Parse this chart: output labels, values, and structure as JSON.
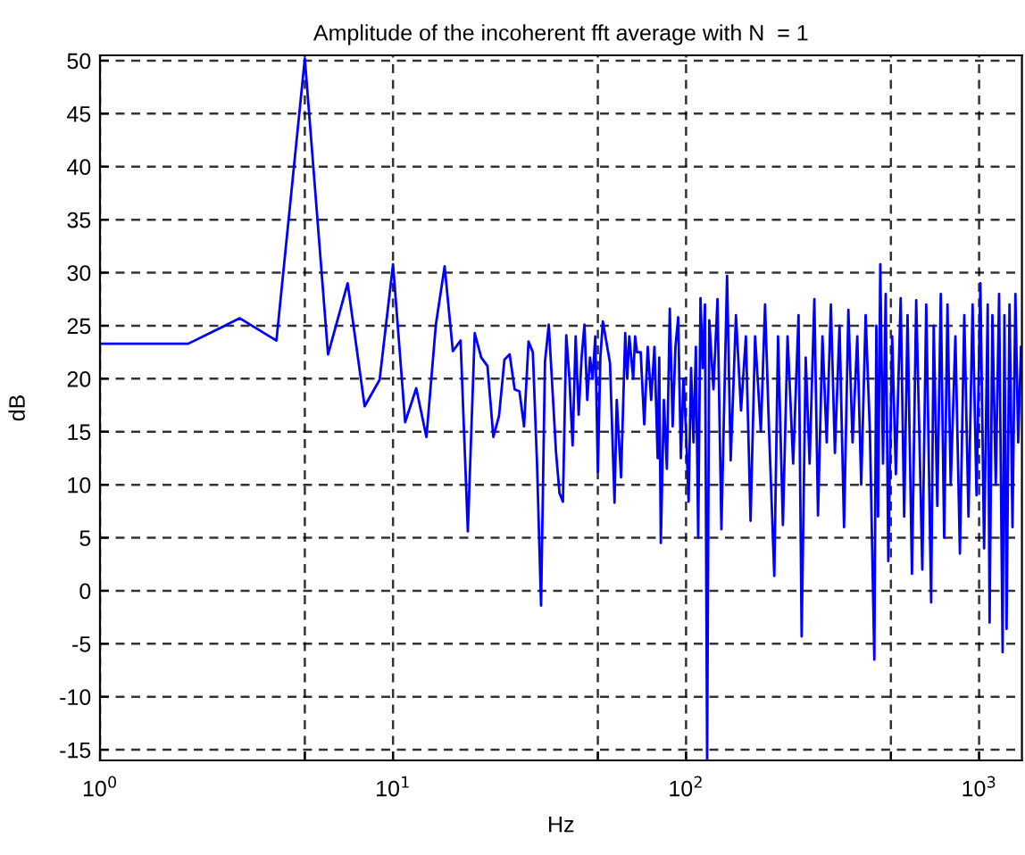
{
  "chart_data": {
    "type": "line",
    "title": "Amplitude of the incoherent fft average with N  = 1",
    "xlabel": "Hz",
    "ylabel": "dB",
    "log": "x",
    "grid": true,
    "line_style": "solid",
    "marker": "none",
    "xlim": [
      1,
      1400
    ],
    "ylim": [
      -16,
      50.5
    ],
    "xticks": [
      {
        "value": 1,
        "label": "10$^{0}$"
      },
      {
        "value": 5,
        "label": null
      },
      {
        "value": 10,
        "label": "10$^{1}$"
      },
      {
        "value": 50,
        "label": null
      },
      {
        "value": 100,
        "label": "10$^{2}$"
      },
      {
        "value": 500,
        "label": null
      },
      {
        "value": 1000,
        "label": "10$^{3}$"
      }
    ],
    "yticks": [
      -15,
      -10,
      -5,
      0,
      5,
      10,
      15,
      20,
      25,
      30,
      35,
      40,
      45,
      50
    ],
    "series": [
      {
        "color": "#0000ff",
        "x": [
          1,
          2,
          3,
          4,
          5,
          6,
          7,
          8,
          9,
          10,
          11,
          12,
          13,
          14,
          15,
          16,
          17,
          18,
          19,
          20,
          21,
          22,
          23,
          24,
          25,
          26,
          27,
          28,
          29,
          30,
          31,
          32,
          33,
          34,
          35,
          36,
          37,
          38,
          39,
          40,
          41,
          42,
          43,
          44,
          45,
          46,
          47,
          48,
          49,
          50,
          51,
          52,
          55,
          57,
          58,
          60,
          62,
          63,
          64,
          66,
          67,
          68,
          70,
          72,
          74,
          76,
          78,
          80,
          81,
          82,
          84,
          86,
          88,
          90,
          92,
          94,
          96,
          98,
          100,
          102,
          104,
          106,
          108,
          110,
          112,
          114,
          116,
          118,
          120,
          124,
          128,
          132,
          138,
          142,
          148,
          154,
          160,
          166,
          172,
          180,
          186,
          192,
          200,
          206,
          214,
          222,
          232,
          242,
          248,
          256,
          264,
          274,
          282,
          292,
          302,
          312,
          322,
          334,
          346,
          358,
          370,
          384,
          396,
          410,
          424,
          439,
          446,
          452,
          460,
          470,
          480,
          490,
          505,
          520,
          540,
          555,
          570,
          590,
          610,
          625,
          640,
          660,
          686,
          700,
          720,
          740,
          760,
          780,
          800,
          830,
          860,
          890,
          920,
          950,
          980,
          1010,
          1040,
          1070,
          1086,
          1110,
          1140,
          1170,
          1203,
          1220,
          1241,
          1270,
          1300,
          1330,
          1360,
          1390
        ],
        "values": [
          23.3,
          23.3,
          25.7,
          23.6,
          50.2,
          22.3,
          29,
          17.4,
          19.9,
          30.8,
          15.9,
          19.1,
          14.5,
          25.1,
          30.6,
          22.6,
          23.6,
          5.6,
          24.3,
          22,
          21.2,
          14.5,
          16.5,
          21.8,
          22.3,
          19,
          18.8,
          15.5,
          23.5,
          22.5,
          12,
          -1.4,
          21.6,
          25.1,
          19,
          13,
          9.2,
          8.4,
          24.1,
          20,
          13.7,
          24,
          16.6,
          22,
          25.1,
          18,
          22,
          20,
          24,
          11.2,
          22,
          25.4,
          21.5,
          8.3,
          18,
          10.7,
          24.3,
          20,
          24,
          20,
          24,
          22.5,
          22.5,
          15.7,
          23,
          18,
          23,
          12.5,
          22,
          4.5,
          18,
          11.5,
          26.6,
          15.5,
          23,
          25.8,
          12.5,
          20,
          15,
          8.4,
          21,
          14,
          23,
          5,
          27.6,
          21,
          27,
          -16,
          25.5,
          19,
          27.5,
          5.8,
          29.7,
          12.3,
          26,
          17,
          24,
          6.6,
          24,
          15,
          27,
          15,
          1.4,
          24,
          6.2,
          24,
          12,
          26,
          -4.3,
          22,
          12,
          27.5,
          7.1,
          24,
          14,
          27,
          13,
          25,
          6,
          26.5,
          14,
          24,
          10,
          26,
          15,
          -6.5,
          25,
          7,
          30.8,
          12,
          28,
          2.8,
          24,
          11,
          27.6,
          7,
          26,
          1.6,
          27.4,
          15,
          2,
          27,
          -1.1,
          25,
          8,
          28,
          5,
          27,
          10,
          24,
          3.5,
          26,
          7,
          27,
          9,
          29,
          4,
          27,
          -3,
          26,
          10,
          28,
          -5.8,
          26,
          -3.6,
          27,
          6,
          28,
          14,
          23
        ]
      }
    ]
  }
}
